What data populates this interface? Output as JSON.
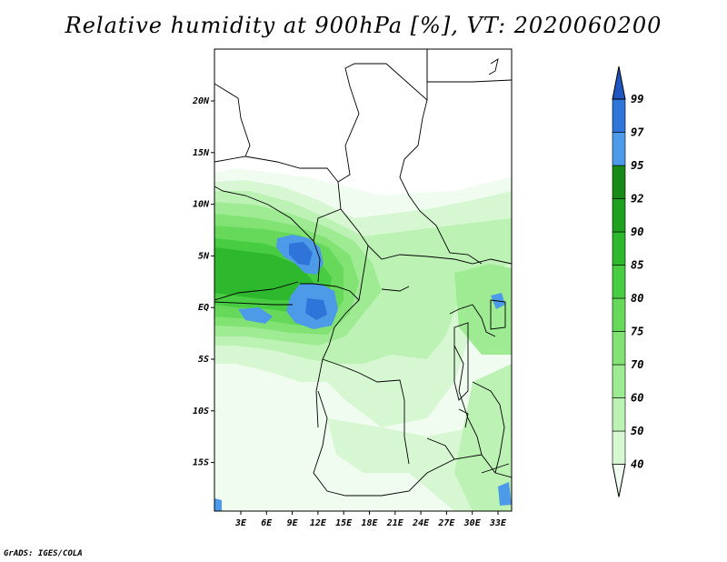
{
  "title": "Relative humidity at 900hPa [%], VT: 2020060200",
  "credit": "GrADS: IGES/COLA",
  "map": {
    "lat_labels": [
      "20N",
      "15N",
      "10N",
      "5N",
      "EQ",
      "5S",
      "10S",
      "15S"
    ],
    "lon_labels": [
      "3E",
      "6E",
      "9E",
      "12E",
      "15E",
      "18E",
      "21E",
      "24E",
      "27E",
      "30E",
      "33E"
    ]
  },
  "colorbar": {
    "levels": [
      "40",
      "50",
      "60",
      "70",
      "75",
      "80",
      "85",
      "90",
      "92",
      "95",
      "97",
      "99"
    ],
    "colors": [
      "#f0fcf0",
      "#d7f7d2",
      "#bdf2b5",
      "#9feb94",
      "#82e374",
      "#66d95a",
      "#48cc42",
      "#2eb82e",
      "#1fa01f",
      "#178a17",
      "#4d9be8",
      "#2f74d8",
      "#1f55c0"
    ]
  }
}
